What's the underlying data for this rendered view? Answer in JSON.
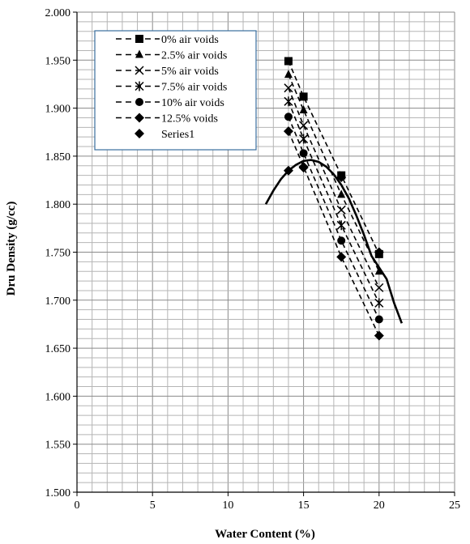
{
  "chart_data": {
    "type": "scatter",
    "xlabel": "Water Content (%)",
    "ylabel": "Dru Density (g/cc)",
    "xlim": [
      0,
      25
    ],
    "ylim": [
      1.5,
      2.0
    ],
    "x_ticks": [
      "0",
      "5",
      "10",
      "15",
      "20",
      "25"
    ],
    "y_ticks": [
      "1.500",
      "1.550",
      "1.600",
      "1.650",
      "1.700",
      "1.750",
      "1.800",
      "1.850",
      "1.900",
      "1.950",
      "2.000"
    ],
    "grid": true,
    "legend_position": "top-left",
    "series": [
      {
        "name": "0% air voids",
        "marker": "square",
        "line": "dashed",
        "points": [
          [
            14,
            1.949
          ],
          [
            15,
            1.912
          ],
          [
            17.5,
            1.83
          ],
          [
            20,
            1.748
          ]
        ]
      },
      {
        "name": "2.5% air voids",
        "marker": "triangle",
        "line": "dashed",
        "points": [
          [
            14,
            1.935
          ],
          [
            15,
            1.898
          ],
          [
            17.5,
            1.81
          ],
          [
            20,
            1.73
          ]
        ]
      },
      {
        "name": "5% air voids",
        "marker": "x",
        "line": "dashed",
        "points": [
          [
            14,
            1.921
          ],
          [
            15,
            1.882
          ],
          [
            17.5,
            1.794
          ],
          [
            20,
            1.713
          ]
        ]
      },
      {
        "name": "7.5% air voids",
        "marker": "star",
        "line": "dashed",
        "points": [
          [
            14,
            1.907
          ],
          [
            15,
            1.868
          ],
          [
            17.5,
            1.778
          ],
          [
            20,
            1.697
          ]
        ]
      },
      {
        "name": "10% air voids",
        "marker": "circle",
        "line": "dashed",
        "points": [
          [
            14,
            1.891
          ],
          [
            15,
            1.853
          ],
          [
            17.5,
            1.762
          ],
          [
            20,
            1.68
          ]
        ]
      },
      {
        "name": "12.5% voids",
        "marker": "diamond",
        "line": "dashed",
        "points": [
          [
            14,
            1.876
          ],
          [
            15,
            1.839
          ],
          [
            17.5,
            1.745
          ],
          [
            20,
            1.663
          ]
        ]
      },
      {
        "name": "Series1",
        "marker": "diamond",
        "line": "none",
        "points": [
          [
            14,
            1.835
          ],
          [
            15,
            1.838
          ],
          [
            17.5,
            1.828
          ],
          [
            20,
            1.75
          ]
        ]
      }
    ],
    "trend_curve": {
      "description": "compaction curve",
      "points": [
        [
          12.5,
          1.8
        ],
        [
          13,
          1.814
        ],
        [
          13.5,
          1.826
        ],
        [
          14,
          1.835
        ],
        [
          14.5,
          1.841
        ],
        [
          15,
          1.845
        ],
        [
          15.5,
          1.846
        ],
        [
          16,
          1.844
        ],
        [
          16.5,
          1.839
        ],
        [
          17,
          1.831
        ],
        [
          17.5,
          1.82
        ],
        [
          18,
          1.806
        ],
        [
          18.5,
          1.788
        ],
        [
          19,
          1.768
        ],
        [
          19.5,
          1.746
        ],
        [
          20,
          1.75
        ],
        [
          20.5,
          1.722
        ],
        [
          21,
          1.697
        ],
        [
          21.5,
          1.676
        ]
      ]
    }
  }
}
